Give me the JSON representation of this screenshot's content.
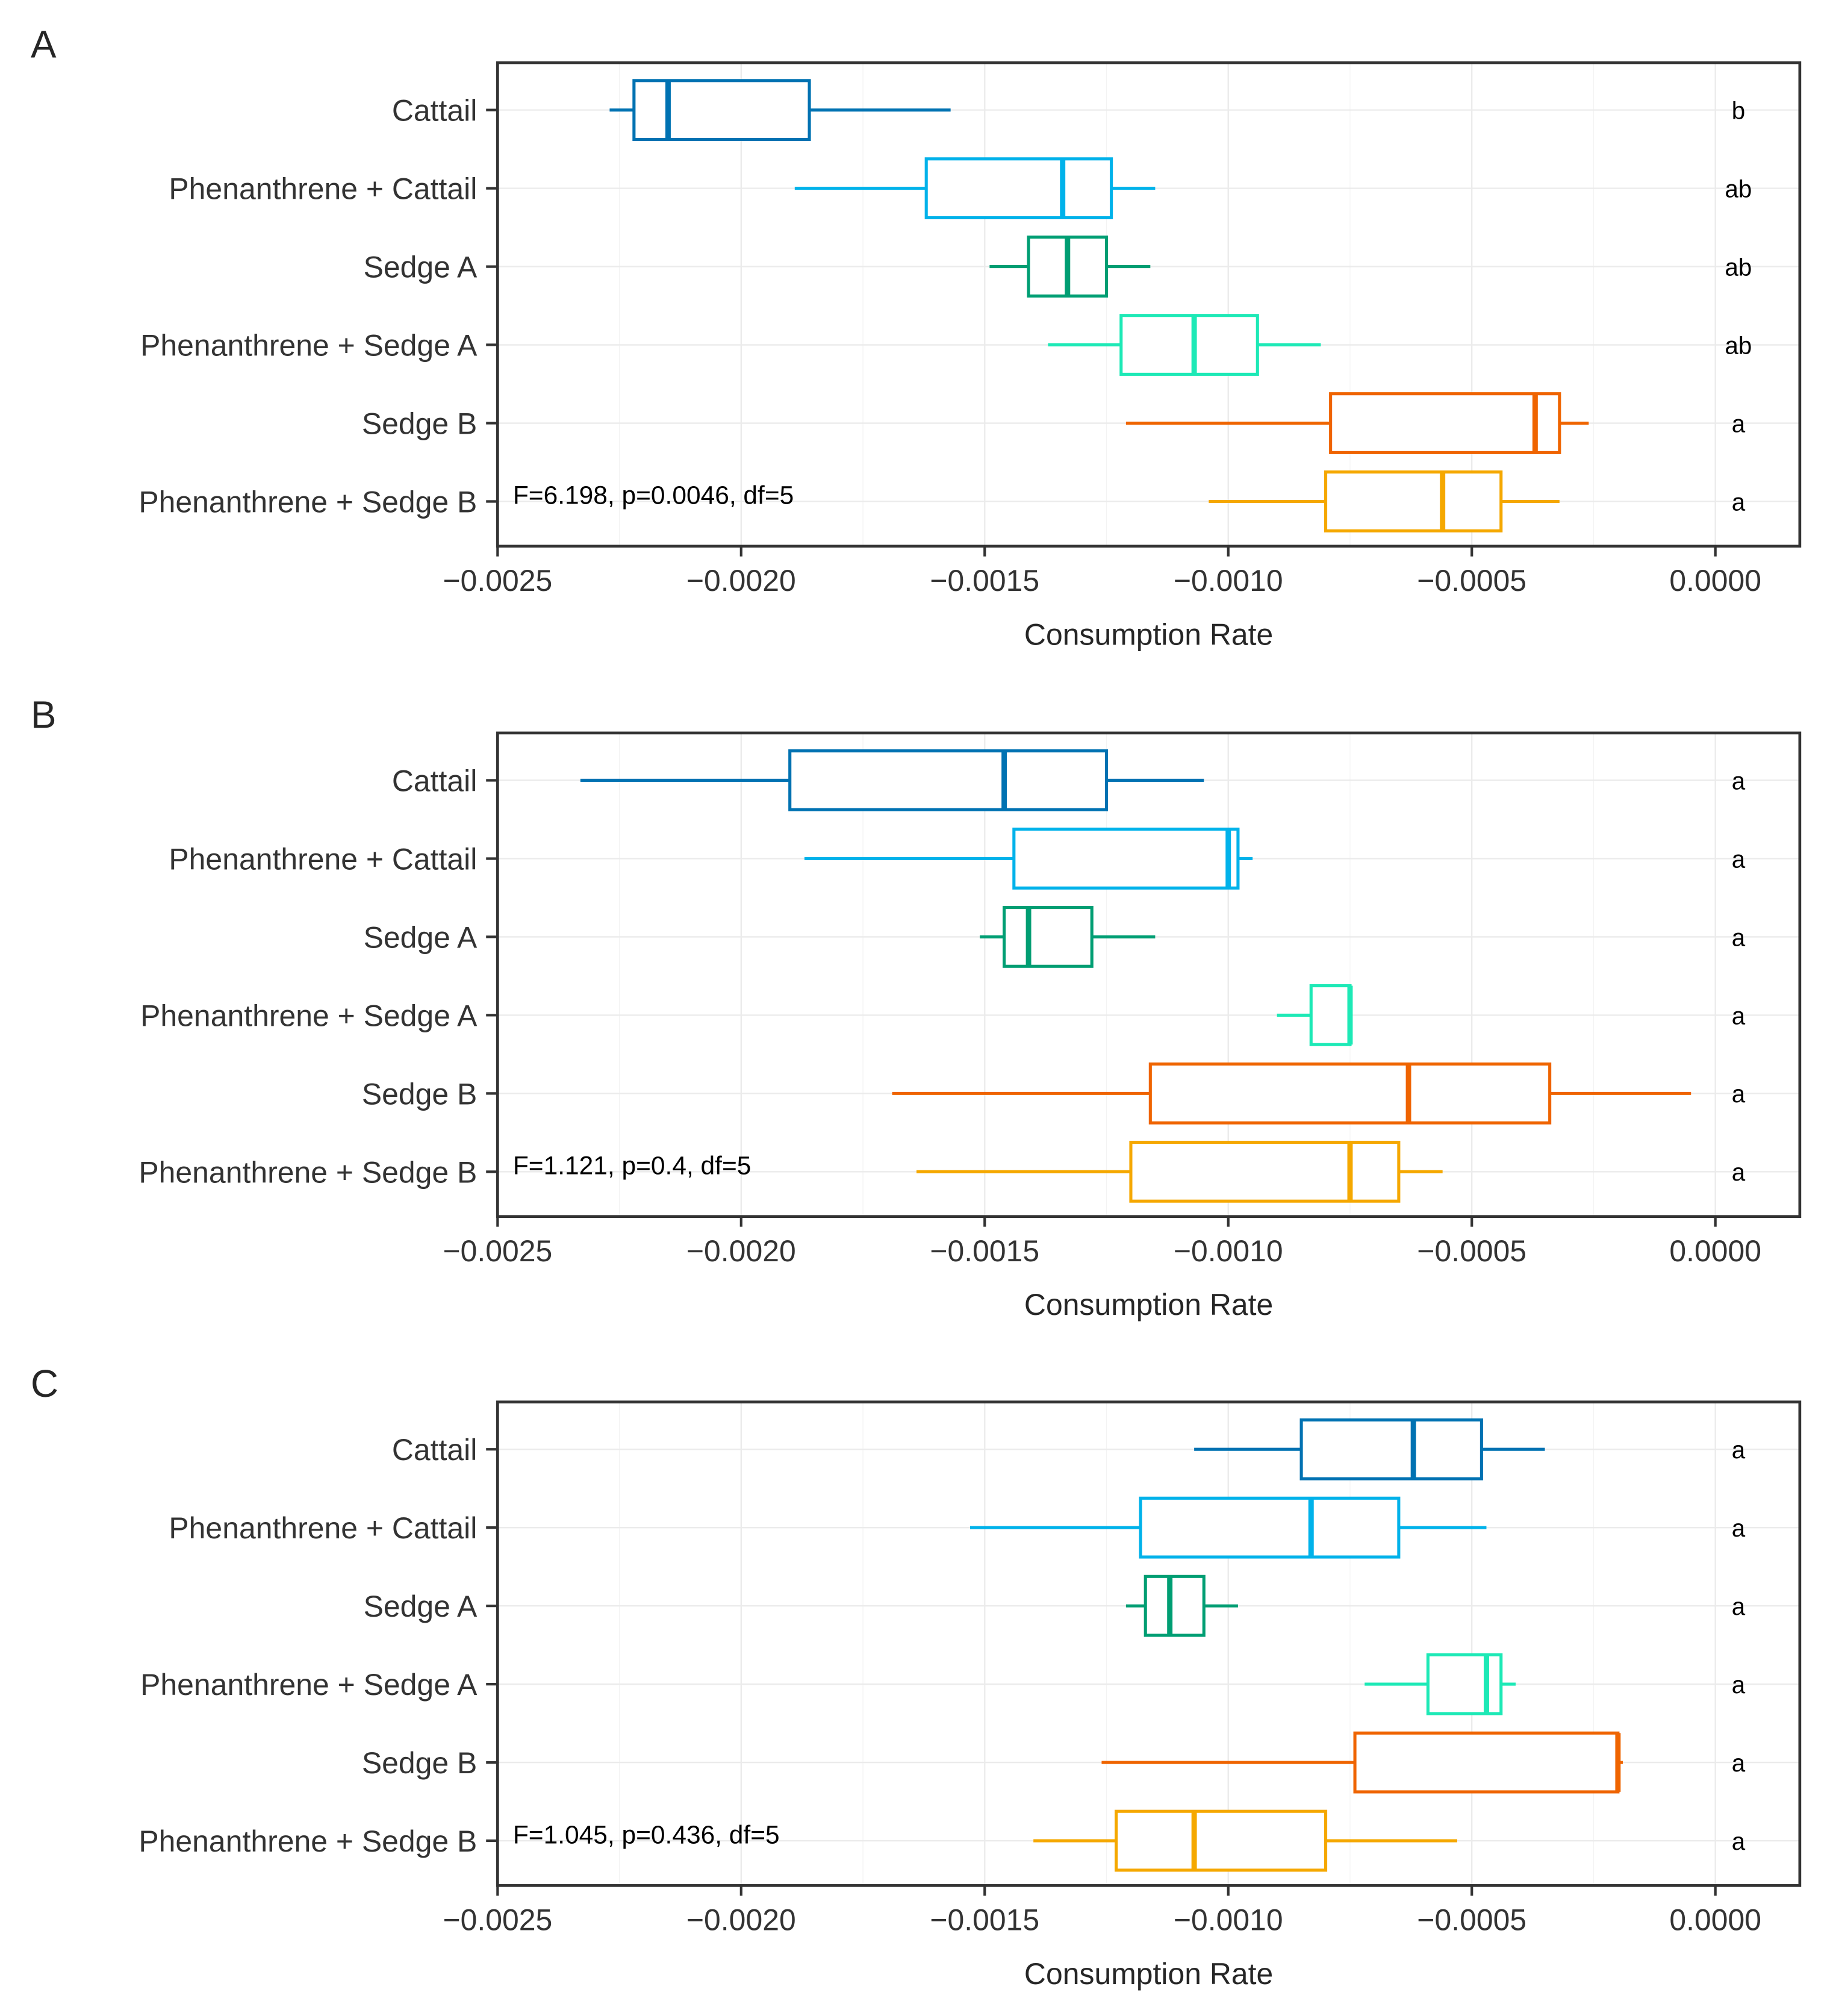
{
  "figure": {
    "categories": [
      "Cattail",
      "Phenanthrene + Cattail",
      "Sedge A",
      "Phenanthrene + Sedge A",
      "Sedge B",
      "Phenanthrene + Sedge B"
    ],
    "colors": {
      "Cattail": "#0072B2",
      "Phenanthrene + Cattail": "#00B2EA",
      "Sedge A": "#009E73",
      "Phenanthrene + Sedge A": "#1DE9B6",
      "Sedge B": "#EF6400",
      "Phenanthrene + Sedge B": "#F5A800"
    }
  },
  "chart_data": [
    {
      "type": "boxplot",
      "panel": "A",
      "title": "A",
      "xlabel": "Consumption Rate",
      "ylabel": "",
      "xlim": [
        -0.0025,
        0.00017
      ],
      "xticks": [
        -0.0025,
        -0.002,
        -0.0015,
        -0.001,
        -0.0005,
        0.0
      ],
      "xtick_labels": [
        "−0.0025",
        "−0.0020",
        "−0.0015",
        "−0.0010",
        "−0.0005",
        "0.0000"
      ],
      "grid": true,
      "annotation": "F=6.198, p=0.0046, df=5",
      "series": [
        {
          "name": "Cattail",
          "whisker_low": -0.00227,
          "q1": -0.00222,
          "median": -0.00215,
          "q3": -0.00186,
          "whisker_high": -0.00157,
          "letter": "b"
        },
        {
          "name": "Phenanthrene + Cattail",
          "whisker_low": -0.00189,
          "q1": -0.00162,
          "median": -0.00134,
          "q3": -0.00124,
          "whisker_high": -0.00115,
          "letter": "ab"
        },
        {
          "name": "Sedge A",
          "whisker_low": -0.00149,
          "q1": -0.00141,
          "median": -0.00133,
          "q3": -0.00125,
          "whisker_high": -0.00116,
          "letter": "ab"
        },
        {
          "name": "Phenanthrene + Sedge A",
          "whisker_low": -0.00137,
          "q1": -0.00122,
          "median": -0.00107,
          "q3": -0.00094,
          "whisker_high": -0.00081,
          "letter": "ab"
        },
        {
          "name": "Sedge B",
          "whisker_low": -0.00121,
          "q1": -0.00079,
          "median": -0.00037,
          "q3": -0.00032,
          "whisker_high": -0.00026,
          "letter": "a"
        },
        {
          "name": "Phenanthrene + Sedge B",
          "whisker_low": -0.00104,
          "q1": -0.0008,
          "median": -0.00056,
          "q3": -0.00044,
          "whisker_high": -0.00032,
          "letter": "a"
        }
      ]
    },
    {
      "type": "boxplot",
      "panel": "B",
      "title": "B",
      "xlabel": "Consumption Rate",
      "ylabel": "",
      "xlim": [
        -0.0025,
        0.00017
      ],
      "xticks": [
        -0.0025,
        -0.002,
        -0.0015,
        -0.001,
        -0.0005,
        0.0
      ],
      "xtick_labels": [
        "−0.0025",
        "−0.0020",
        "−0.0015",
        "−0.0010",
        "−0.0005",
        "0.0000"
      ],
      "grid": true,
      "annotation": "F=1.121, p=0.4, df=5",
      "series": [
        {
          "name": "Cattail",
          "whisker_low": -0.00233,
          "q1": -0.0019,
          "median": -0.00146,
          "q3": -0.00125,
          "whisker_high": -0.00105,
          "letter": "a"
        },
        {
          "name": "Phenanthrene + Cattail",
          "whisker_low": -0.00187,
          "q1": -0.00144,
          "median": -0.001,
          "q3": -0.00098,
          "whisker_high": -0.00095,
          "letter": "a"
        },
        {
          "name": "Sedge A",
          "whisker_low": -0.00151,
          "q1": -0.00146,
          "median": -0.00141,
          "q3": -0.00128,
          "whisker_high": -0.00115,
          "letter": "a"
        },
        {
          "name": "Phenanthrene + Sedge A",
          "whisker_low": -0.0009,
          "q1": -0.00083,
          "median": -0.00075,
          "q3": -0.00075,
          "whisker_high": -0.00075,
          "letter": "a"
        },
        {
          "name": "Sedge B",
          "whisker_low": -0.00169,
          "q1": -0.00116,
          "median": -0.00063,
          "q3": -0.00034,
          "whisker_high": -5e-05,
          "letter": "a"
        },
        {
          "name": "Phenanthrene + Sedge B",
          "whisker_low": -0.00164,
          "q1": -0.0012,
          "median": -0.00075,
          "q3": -0.00065,
          "whisker_high": -0.00056,
          "letter": "a"
        }
      ]
    },
    {
      "type": "boxplot",
      "panel": "C",
      "title": "C",
      "xlabel": "Consumption Rate",
      "ylabel": "",
      "xlim": [
        -0.0025,
        0.00017
      ],
      "xticks": [
        -0.0025,
        -0.002,
        -0.0015,
        -0.001,
        -0.0005,
        0.0
      ],
      "xtick_labels": [
        "−0.0025",
        "−0.0020",
        "−0.0015",
        "−0.0010",
        "−0.0005",
        "0.0000"
      ],
      "grid": true,
      "annotation": "F=1.045, p=0.436, df=5",
      "series": [
        {
          "name": "Cattail",
          "whisker_low": -0.00107,
          "q1": -0.00085,
          "median": -0.00062,
          "q3": -0.00048,
          "whisker_high": -0.00035,
          "letter": "a"
        },
        {
          "name": "Phenanthrene + Cattail",
          "whisker_low": -0.00153,
          "q1": -0.00118,
          "median": -0.00083,
          "q3": -0.00065,
          "whisker_high": -0.00047,
          "letter": "a"
        },
        {
          "name": "Sedge A",
          "whisker_low": -0.00121,
          "q1": -0.00117,
          "median": -0.00112,
          "q3": -0.00105,
          "whisker_high": -0.00098,
          "letter": "a"
        },
        {
          "name": "Phenanthrene + Sedge A",
          "whisker_low": -0.00072,
          "q1": -0.00059,
          "median": -0.00047,
          "q3": -0.00044,
          "whisker_high": -0.00041,
          "letter": "a"
        },
        {
          "name": "Sedge B",
          "whisker_low": -0.00126,
          "q1": -0.00074,
          "median": -0.0002,
          "q3": -0.0002,
          "whisker_high": -0.00019,
          "letter": "a"
        },
        {
          "name": "Phenanthrene + Sedge B",
          "whisker_low": -0.0014,
          "q1": -0.00123,
          "median": -0.00107,
          "q3": -0.0008,
          "whisker_high": -0.00053,
          "letter": "a"
        }
      ]
    }
  ]
}
